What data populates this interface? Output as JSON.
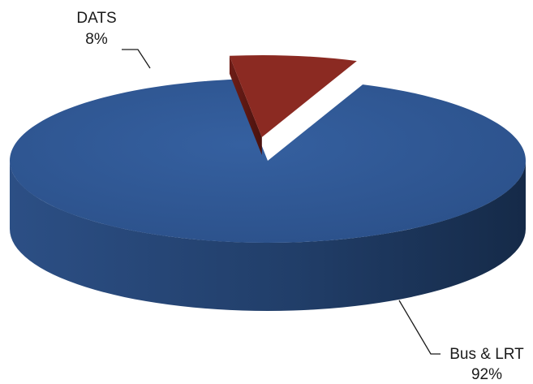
{
  "chart_data": {
    "type": "pie",
    "style": "3d-exploded",
    "categories": [
      "Bus & LRT",
      "DATS"
    ],
    "values": [
      92,
      8
    ],
    "value_suffix": "%",
    "series": [
      {
        "values": [
          92,
          8
        ],
        "colors": [
          "#2f5597",
          "#8b2a22"
        ]
      }
    ],
    "labels": [
      {
        "name": "Bus & LRT",
        "value": "92%"
      },
      {
        "name": "DATS",
        "value": "8%"
      }
    ],
    "exploded_slice": "DATS",
    "legend": "none"
  }
}
